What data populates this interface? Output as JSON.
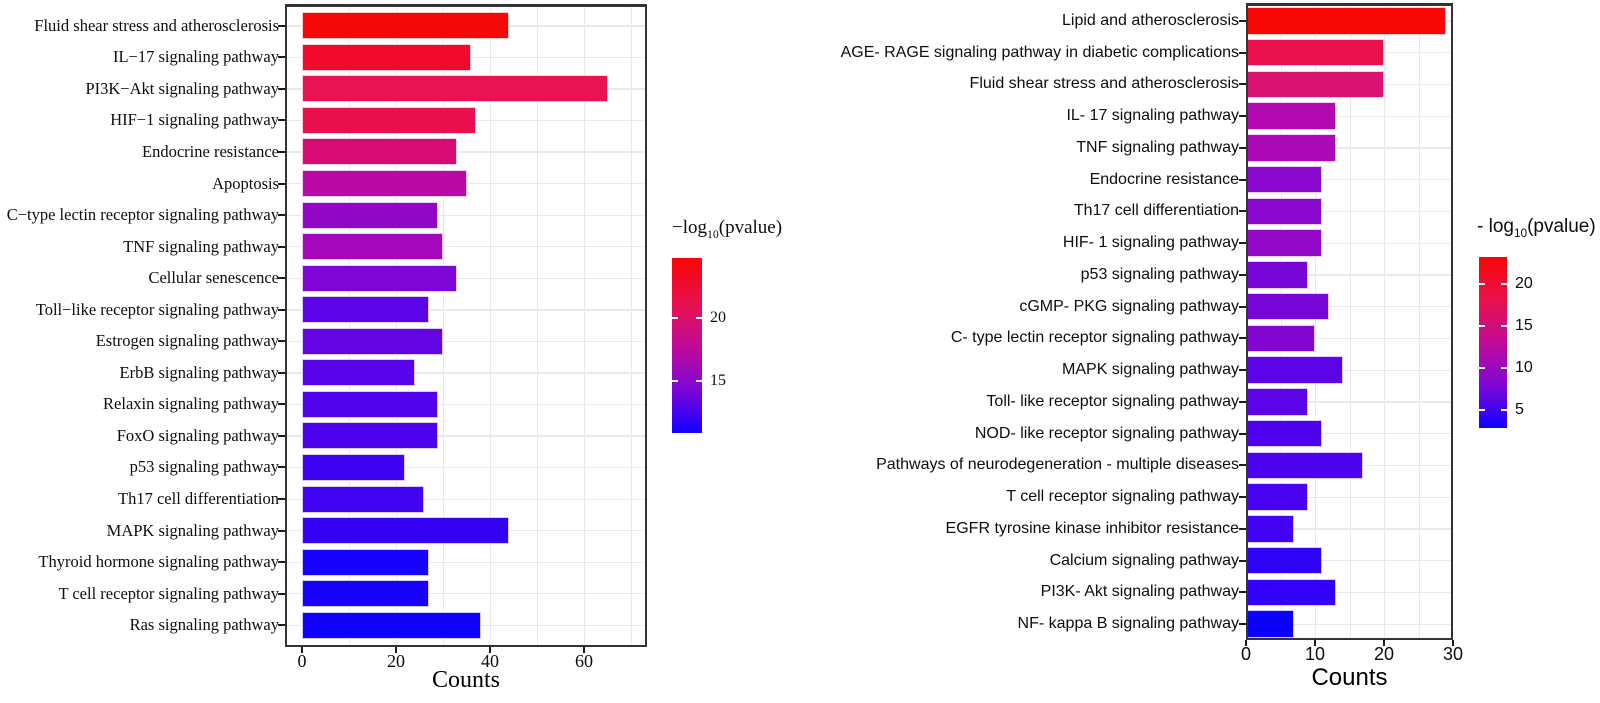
{
  "figure": {
    "background": "#ffffff",
    "accent_high": "#f90505",
    "accent_low": "#0f01fe"
  },
  "chart_data": [
    {
      "type": "bar",
      "orientation": "horizontal",
      "xlabel": "Counts",
      "x_ticks": [
        0,
        20,
        40,
        60
      ],
      "x_minor_ticks": [
        10,
        30,
        50,
        70
      ],
      "xlim": [
        0,
        73
      ],
      "grid": true,
      "legend": {
        "title_prefix": "−log",
        "title_sub": "10",
        "title_suffix": "(pvalue)",
        "ticks": [
          20,
          15
        ],
        "position": "right",
        "gradient_stops": [
          "#f90505 0%",
          "#e8114e 26%",
          "#c00b98 50%",
          "#8207d2 74%",
          "#3a02f3 91%",
          "#0f01fe 100%"
        ]
      },
      "bars": [
        {
          "label": "Fluid shear stress and atherosclerosis",
          "value": 44,
          "color": "#f50808"
        },
        {
          "label": "IL−17 signaling pathway",
          "value": 36,
          "color": "#f20a2e"
        },
        {
          "label": "PI3K−Akt signaling pathway",
          "value": 65,
          "color": "#e71353"
        },
        {
          "label": "HIF−1 signaling pathway",
          "value": 37,
          "color": "#e90f4d"
        },
        {
          "label": "Endocrine resistance",
          "value": 33,
          "color": "#d60c74"
        },
        {
          "label": "Apoptosis",
          "value": 35,
          "color": "#ba0aa6"
        },
        {
          "label": "C−type lectin receptor signaling pathway",
          "value": 29,
          "color": "#9207c6"
        },
        {
          "label": "TNF signaling pathway",
          "value": 30,
          "color": "#a408bc"
        },
        {
          "label": "Cellular senescence",
          "value": 33,
          "color": "#7e06d6"
        },
        {
          "label": "Toll−like receptor signaling pathway",
          "value": 27,
          "color": "#5c04e8"
        },
        {
          "label": "Estrogen signaling pathway",
          "value": 30,
          "color": "#6305e2"
        },
        {
          "label": "ErbB signaling pathway",
          "value": 24,
          "color": "#5804ea"
        },
        {
          "label": "Relaxin signaling pathway",
          "value": 29,
          "color": "#5104ec"
        },
        {
          "label": "FoxO signaling pathway",
          "value": 29,
          "color": "#4b03ee"
        },
        {
          "label": "p53 signaling pathway",
          "value": 22,
          "color": "#3d03f2"
        },
        {
          "label": "Th17 cell differentiation",
          "value": 26,
          "color": "#4103f1"
        },
        {
          "label": "MAPK signaling pathway",
          "value": 44,
          "color": "#3302f5"
        },
        {
          "label": "Thyroid hormone signaling pathway",
          "value": 27,
          "color": "#1601fc"
        },
        {
          "label": "T cell receptor signaling pathway",
          "value": 27,
          "color": "#1701fb"
        },
        {
          "label": "Ras signaling pathway",
          "value": 38,
          "color": "#1001fe"
        }
      ]
    },
    {
      "type": "bar",
      "orientation": "horizontal",
      "xlabel": "Counts",
      "x_ticks": [
        0,
        10,
        20,
        30
      ],
      "x_minor_ticks": [
        5,
        15,
        25
      ],
      "xlim": [
        0,
        30
      ],
      "grid": true,
      "legend": {
        "title_prefix": "- log",
        "title_sub": "10",
        "title_suffix": "(pvalue)",
        "ticks": [
          20,
          15,
          10,
          5
        ],
        "position": "right",
        "gradient_stops": [
          "#f90505 0%",
          "#e8114e 26%",
          "#c00b98 50%",
          "#8207d2 74%",
          "#3a02f3 91%",
          "#0f01fe 100%"
        ]
      },
      "bars": [
        {
          "label": "Lipid and atherosclerosis",
          "value": 29,
          "color": "#f80707"
        },
        {
          "label": "AGE- RAGE signaling pathway in diabetic complications",
          "value": 20,
          "color": "#e8114e"
        },
        {
          "label": "Fluid shear stress and atherosclerosis",
          "value": 20,
          "color": "#da1272"
        },
        {
          "label": "IL- 17 signaling pathway",
          "value": 13,
          "color": "#b20ab0"
        },
        {
          "label": "TNF signaling pathway",
          "value": 13,
          "color": "#ac0ab8"
        },
        {
          "label": "Endocrine resistance",
          "value": 11,
          "color": "#8a07ce"
        },
        {
          "label": "Th17 cell differentiation",
          "value": 11,
          "color": "#8a07ce"
        },
        {
          "label": "HIF- 1 signaling pathway",
          "value": 11,
          "color": "#9108c7"
        },
        {
          "label": "p53 signaling pathway",
          "value": 9,
          "color": "#7806d8"
        },
        {
          "label": "cGMP- PKG signaling pathway",
          "value": 12,
          "color": "#7806d8"
        },
        {
          "label": "C- type lectin receptor signaling pathway",
          "value": 10,
          "color": "#8206d2"
        },
        {
          "label": "MAPK signaling pathway",
          "value": 14,
          "color": "#5c04e8"
        },
        {
          "label": "Toll- like receptor signaling pathway",
          "value": 9,
          "color": "#5c04e8"
        },
        {
          "label": "NOD- like receptor signaling pathway",
          "value": 11,
          "color": "#4f03ec"
        },
        {
          "label": "Pathways of neurodegeneration -  multiple diseases",
          "value": 17,
          "color": "#4c03ee"
        },
        {
          "label": "T cell receptor signaling pathway",
          "value": 9,
          "color": "#4a03f0"
        },
        {
          "label": "EGFR tyrosine kinase inhibitor resistance",
          "value": 7,
          "color": "#4103f2"
        },
        {
          "label": "Calcium signaling pathway",
          "value": 11,
          "color": "#2f02f8"
        },
        {
          "label": "PI3K- Akt signaling pathway",
          "value": 13,
          "color": "#3302f6"
        },
        {
          "label": "NF- kappa B signaling pathway",
          "value": 7,
          "color": "#0c01fe"
        }
      ]
    }
  ]
}
